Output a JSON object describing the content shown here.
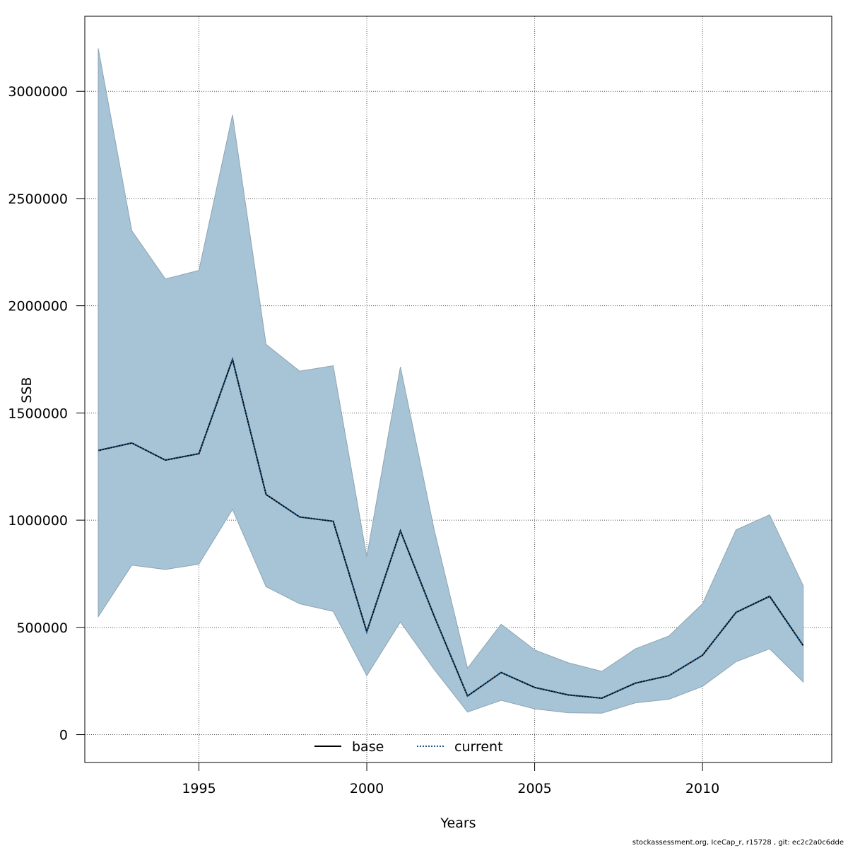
{
  "chart_data": {
    "type": "area",
    "title": "",
    "xlabel": "Years",
    "ylabel": "SSB",
    "xlim": [
      1991.6,
      2013.85
    ],
    "ylim": [
      -130000,
      3350000
    ],
    "x_ticks": [
      1995,
      2000,
      2005,
      2010
    ],
    "y_ticks": [
      0,
      500000,
      1000000,
      1500000,
      2000000,
      2500000,
      3000000
    ],
    "grid": true,
    "legend_position": "bottom-center",
    "x": [
      1992,
      1993,
      1994,
      1995,
      1996,
      1997,
      1998,
      1999,
      2000,
      2001,
      2002,
      2003,
      2004,
      2005,
      2006,
      2007,
      2008,
      2009,
      2010,
      2011,
      2012,
      2013
    ],
    "series": [
      {
        "name": "base",
        "style": "solid",
        "color": "#000000",
        "values": [
          1325000,
          1360000,
          1280000,
          1310000,
          1750000,
          1120000,
          1015000,
          995000,
          480000,
          950000,
          555000,
          180000,
          290000,
          220000,
          185000,
          170000,
          240000,
          275000,
          370000,
          570000,
          645000,
          415000
        ]
      },
      {
        "name": "current",
        "style": "dotted",
        "color": "#1f5a8a",
        "values": [
          1325000,
          1360000,
          1280000,
          1310000,
          1750000,
          1120000,
          1015000,
          995000,
          480000,
          950000,
          555000,
          180000,
          290000,
          220000,
          185000,
          170000,
          240000,
          275000,
          370000,
          570000,
          645000,
          415000
        ]
      }
    ],
    "band": {
      "color": "#a6c4d5",
      "edge_color": "#8ea4b3",
      "lower": [
        550000,
        790000,
        770000,
        795000,
        1050000,
        690000,
        610000,
        575000,
        275000,
        525000,
        305000,
        105000,
        160000,
        120000,
        102000,
        100000,
        148000,
        165000,
        225000,
        340000,
        400000,
        245000
      ],
      "upper": [
        3200000,
        2350000,
        2125000,
        2165000,
        2890000,
        1820000,
        1695000,
        1720000,
        830000,
        1715000,
        960000,
        310000,
        515000,
        395000,
        335000,
        295000,
        400000,
        460000,
        610000,
        955000,
        1025000,
        695000
      ]
    }
  },
  "footer": "stockassessment.org, IceCap_r, r15728 , git: ec2c2a0c6dde"
}
